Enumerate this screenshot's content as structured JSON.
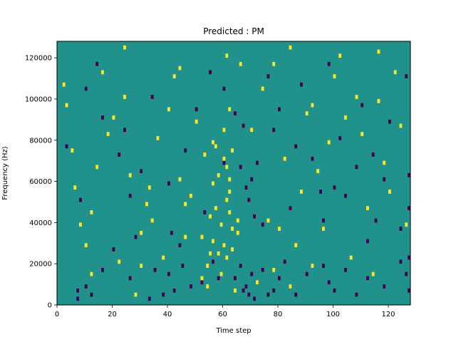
{
  "chart_data": {
    "type": "heatmap",
    "title": "Predicted : PM",
    "xlabel": "Time step",
    "ylabel": "Frequency (Hz)",
    "xlim": [
      0,
      128
    ],
    "ylim": [
      0,
      128000
    ],
    "x_ticks": [
      0,
      20,
      40,
      60,
      80,
      100,
      120
    ],
    "y_ticks": [
      0,
      20000,
      40000,
      60000,
      80000,
      100000,
      120000
    ],
    "colormap": "viridis",
    "colors": {
      "background": "#21918c",
      "low": "#440154",
      "high": "#fde725"
    },
    "grid": false,
    "legend": "none",
    "n_time_steps": 128,
    "n_freq_bins": 64,
    "freq_bin_hz": 2000,
    "background_value": 0,
    "cells": {
      "low": [
        [
          7,
          1
        ],
        [
          7,
          3
        ],
        [
          10,
          4
        ],
        [
          12,
          2
        ],
        [
          16,
          8
        ],
        [
          20,
          13
        ],
        [
          26,
          6
        ],
        [
          33,
          1
        ],
        [
          35,
          8
        ],
        [
          38,
          2
        ],
        [
          40,
          7
        ],
        [
          42,
          3
        ],
        [
          45,
          9
        ],
        [
          48,
          4
        ],
        [
          52,
          5
        ],
        [
          56,
          10
        ],
        [
          58,
          6
        ],
        [
          64,
          6
        ],
        [
          66,
          9
        ],
        [
          67,
          3
        ],
        [
          68,
          4
        ],
        [
          69,
          2
        ],
        [
          70,
          7
        ],
        [
          71,
          1
        ],
        [
          72,
          5
        ],
        [
          74,
          8
        ],
        [
          76,
          2
        ],
        [
          78,
          3
        ],
        [
          80,
          6
        ],
        [
          82,
          10
        ],
        [
          84,
          4
        ],
        [
          86,
          2
        ],
        [
          90,
          7
        ],
        [
          96,
          9
        ],
        [
          98,
          5
        ],
        [
          100,
          3
        ],
        [
          104,
          8
        ],
        [
          108,
          2
        ],
        [
          112,
          6
        ],
        [
          118,
          4
        ],
        [
          124,
          10
        ],
        [
          126,
          7
        ],
        [
          127,
          3
        ],
        [
          127,
          11
        ],
        [
          3,
          38
        ],
        [
          8,
          25
        ],
        [
          10,
          52
        ],
        [
          16,
          45
        ],
        [
          22,
          36
        ],
        [
          26,
          26
        ],
        [
          28,
          16
        ],
        [
          30,
          32
        ],
        [
          34,
          50
        ],
        [
          36,
          40
        ],
        [
          41,
          17
        ],
        [
          44,
          14
        ],
        [
          46,
          37
        ],
        [
          50,
          47
        ],
        [
          53,
          22
        ],
        [
          55,
          56
        ],
        [
          60,
          52
        ],
        [
          64,
          46
        ],
        [
          66,
          33
        ],
        [
          68,
          28
        ],
        [
          69,
          25
        ],
        [
          70,
          30
        ],
        [
          71,
          21
        ],
        [
          72,
          34
        ],
        [
          74,
          19
        ],
        [
          78,
          42
        ],
        [
          80,
          47
        ],
        [
          84,
          23
        ],
        [
          88,
          53
        ],
        [
          92,
          35
        ],
        [
          95,
          27
        ],
        [
          96,
          20
        ],
        [
          100,
          28
        ],
        [
          102,
          40
        ],
        [
          104,
          26
        ],
        [
          108,
          33
        ],
        [
          110,
          48
        ],
        [
          114,
          36
        ],
        [
          118,
          30
        ],
        [
          120,
          44
        ],
        [
          124,
          18
        ],
        [
          126,
          55
        ],
        [
          127,
          23
        ],
        [
          127,
          31
        ],
        [
          98,
          58
        ],
        [
          112,
          15
        ],
        [
          60,
          34
        ],
        [
          67,
          43
        ],
        [
          40,
          29
        ],
        [
          24,
          42
        ],
        [
          14,
          58
        ],
        [
          86,
          38
        ],
        [
          76,
          55
        ],
        [
          115,
          20
        ]
      ],
      "high": [
        [
          2,
          53
        ],
        [
          3,
          48
        ],
        [
          5,
          37
        ],
        [
          6,
          28
        ],
        [
          8,
          19
        ],
        [
          10,
          14
        ],
        [
          12,
          22
        ],
        [
          14,
          33
        ],
        [
          16,
          56
        ],
        [
          18,
          41
        ],
        [
          20,
          45
        ],
        [
          22,
          10
        ],
        [
          24,
          50
        ],
        [
          26,
          31
        ],
        [
          28,
          2
        ],
        [
          30,
          17
        ],
        [
          32,
          24
        ],
        [
          34,
          20
        ],
        [
          36,
          40
        ],
        [
          38,
          11
        ],
        [
          40,
          47
        ],
        [
          42,
          55
        ],
        [
          44,
          30
        ],
        [
          46,
          16
        ],
        [
          48,
          26
        ],
        [
          50,
          44
        ],
        [
          52,
          6
        ],
        [
          54,
          9
        ],
        [
          55,
          21
        ],
        [
          56,
          15
        ],
        [
          57,
          38
        ],
        [
          58,
          12
        ],
        [
          59,
          7
        ],
        [
          60,
          35
        ],
        [
          61,
          25
        ],
        [
          62,
          30
        ],
        [
          63,
          18
        ],
        [
          61,
          11
        ],
        [
          60,
          14
        ],
        [
          62,
          22
        ],
        [
          64,
          3
        ],
        [
          65,
          17
        ],
        [
          66,
          58
        ],
        [
          62,
          27
        ],
        [
          61,
          33
        ],
        [
          63,
          13
        ],
        [
          59,
          19
        ],
        [
          57,
          23
        ],
        [
          56,
          29
        ],
        [
          55,
          12
        ],
        [
          53,
          36
        ],
        [
          52,
          16
        ],
        [
          70,
          42
        ],
        [
          72,
          5
        ],
        [
          74,
          52
        ],
        [
          76,
          20
        ],
        [
          78,
          8
        ],
        [
          80,
          18
        ],
        [
          82,
          35
        ],
        [
          84,
          4
        ],
        [
          86,
          14
        ],
        [
          88,
          27
        ],
        [
          90,
          46
        ],
        [
          92,
          9
        ],
        [
          94,
          32
        ],
        [
          96,
          18
        ],
        [
          98,
          39
        ],
        [
          100,
          55
        ],
        [
          102,
          60
        ],
        [
          104,
          45
        ],
        [
          106,
          11
        ],
        [
          108,
          50
        ],
        [
          110,
          41
        ],
        [
          112,
          23
        ],
        [
          114,
          7
        ],
        [
          116,
          61
        ],
        [
          118,
          34
        ],
        [
          120,
          27
        ],
        [
          122,
          56
        ],
        [
          124,
          43
        ],
        [
          126,
          19
        ],
        [
          56,
          39
        ],
        [
          60,
          42
        ],
        [
          61,
          60
        ],
        [
          62,
          47
        ],
        [
          63,
          37
        ],
        [
          58,
          31
        ],
        [
          54,
          4
        ],
        [
          65,
          20
        ],
        [
          78,
          58
        ],
        [
          84,
          62
        ],
        [
          92,
          48
        ],
        [
          116,
          49
        ],
        [
          44,
          57
        ],
        [
          24,
          62
        ],
        [
          33,
          28
        ],
        [
          46,
          24
        ],
        [
          30,
          9
        ],
        [
          12,
          7
        ]
      ]
    }
  }
}
